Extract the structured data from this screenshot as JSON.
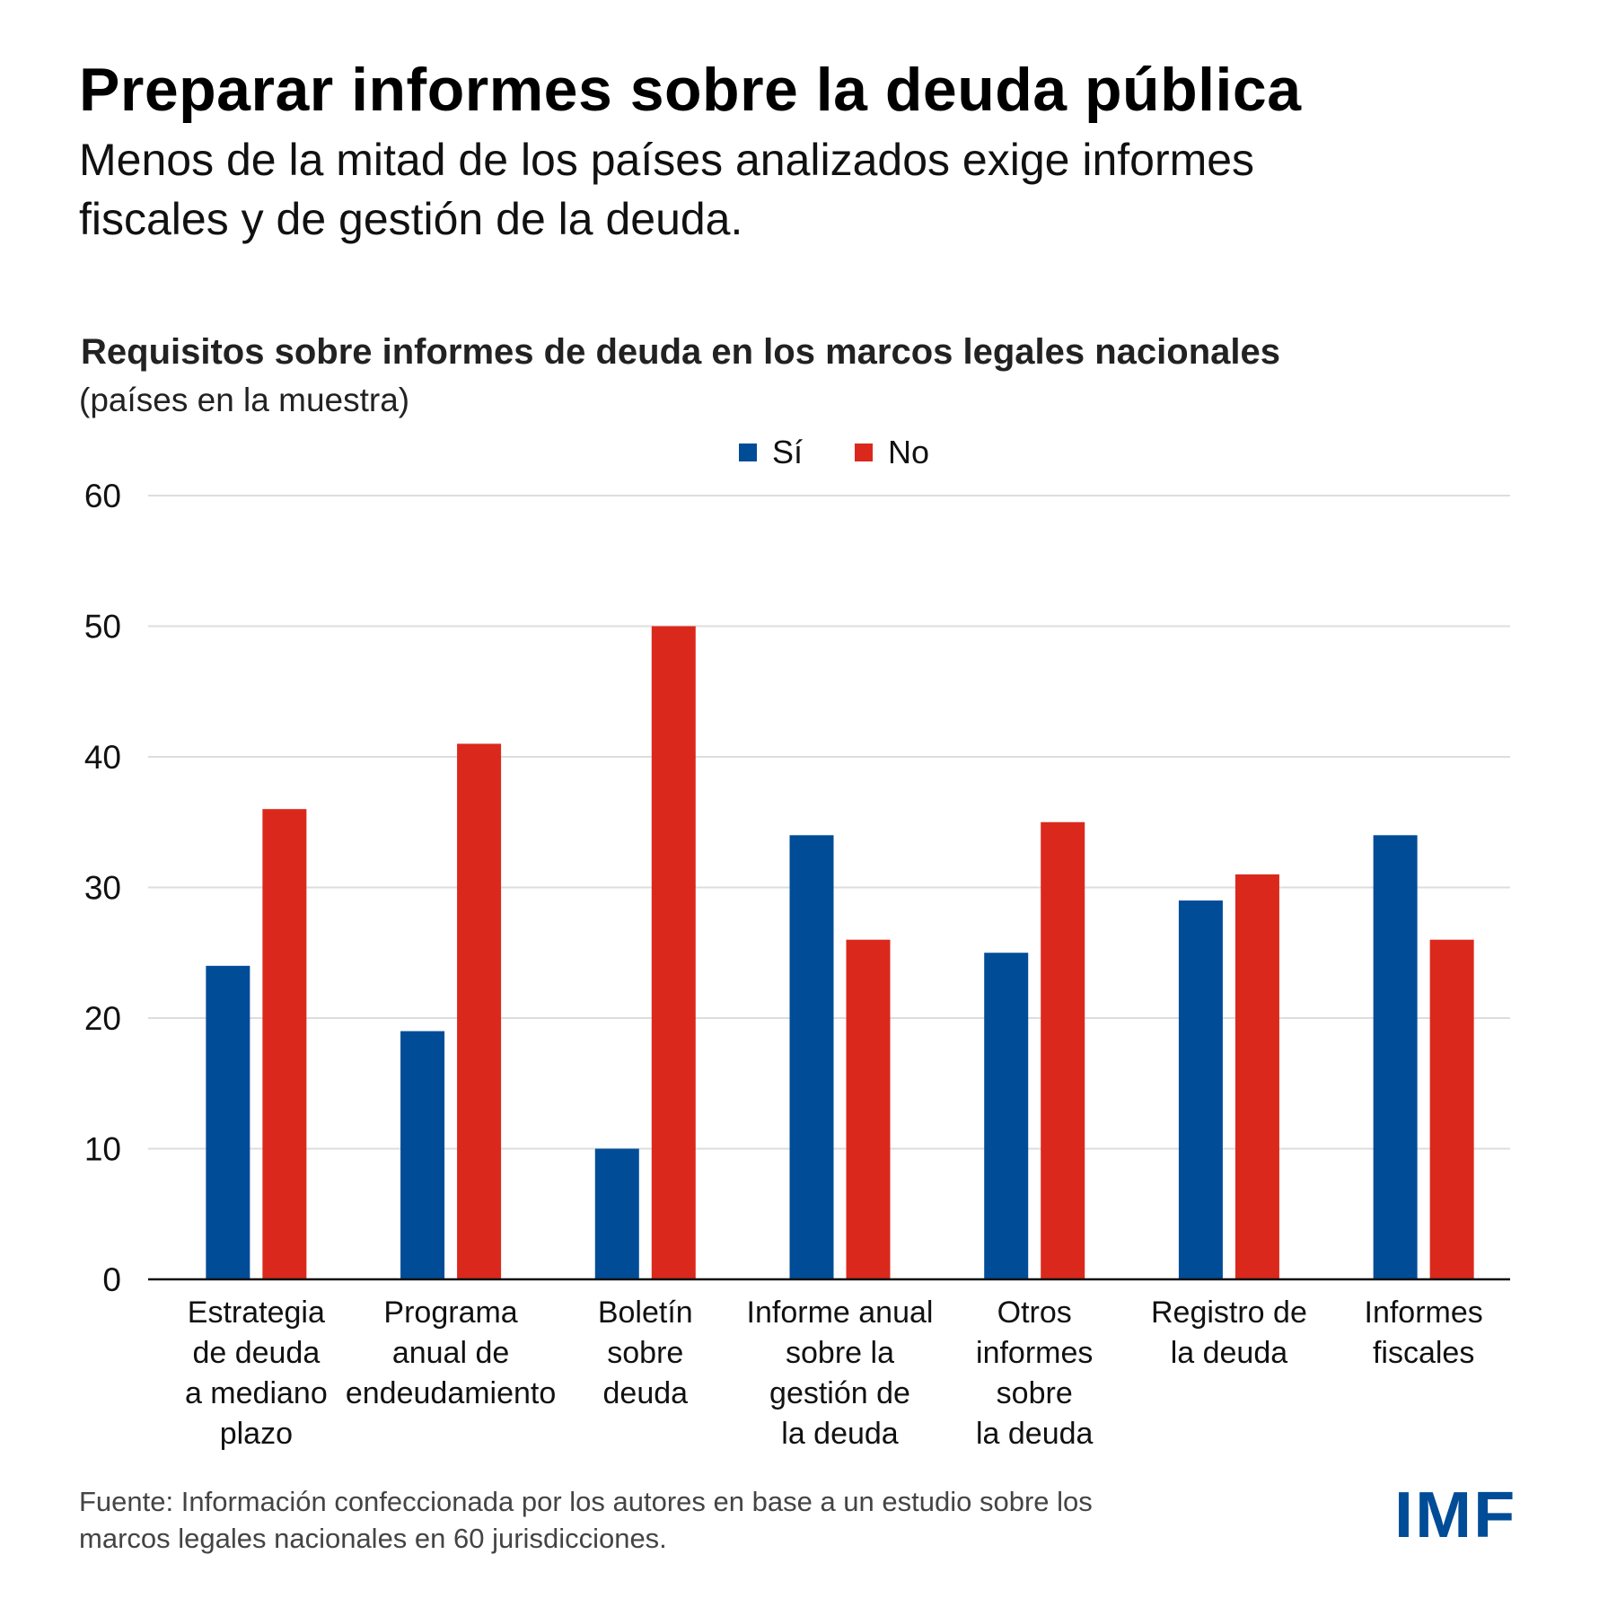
{
  "header": {
    "title": "Preparar informes sobre la deuda pública",
    "subtitle_lines": [
      "Menos de la mitad de los países analizados exige informes",
      "fiscales y de gestión de la deuda."
    ]
  },
  "colors": {
    "si": "#004C97",
    "no": "#DA291C",
    "grid": "#DDDDDD",
    "axis": "#111111",
    "logo": "#004C97"
  },
  "chart_data": {
    "type": "bar",
    "title": "Requisitos sobre informes de deuda en los marcos legales nacionales",
    "subtitle": "(países en la muestra)",
    "xlabel": "",
    "ylabel": "",
    "ylim": [
      0,
      60
    ],
    "yticks": [
      0,
      10,
      20,
      30,
      40,
      50,
      60
    ],
    "grid": true,
    "legend_position": "top-center",
    "categories": [
      [
        "Estrategia",
        "de deuda",
        "a mediano",
        "plazo"
      ],
      [
        "Programa",
        "anual de",
        "endeudamiento"
      ],
      [
        "Boletín",
        "sobre",
        "deuda"
      ],
      [
        "Informe anual",
        "sobre la",
        "gestión de",
        "la deuda"
      ],
      [
        "Otros",
        "informes",
        "sobre",
        "la deuda"
      ],
      [
        "Registro de",
        "la deuda"
      ],
      [
        "Informes",
        "fiscales"
      ]
    ],
    "series": [
      {
        "name": "Sí",
        "color": "#004C97",
        "values": [
          24,
          19,
          10,
          34,
          25,
          29,
          34
        ]
      },
      {
        "name": "No",
        "color": "#DA291C",
        "values": [
          36,
          41,
          50,
          26,
          35,
          31,
          26
        ]
      }
    ]
  },
  "footer": {
    "source_lines": [
      "Fuente: Información confeccionada por los autores en base a un estudio sobre los",
      "marcos legales nacionales en 60 jurisdicciones."
    ]
  },
  "logo": {
    "text": "IMF"
  }
}
